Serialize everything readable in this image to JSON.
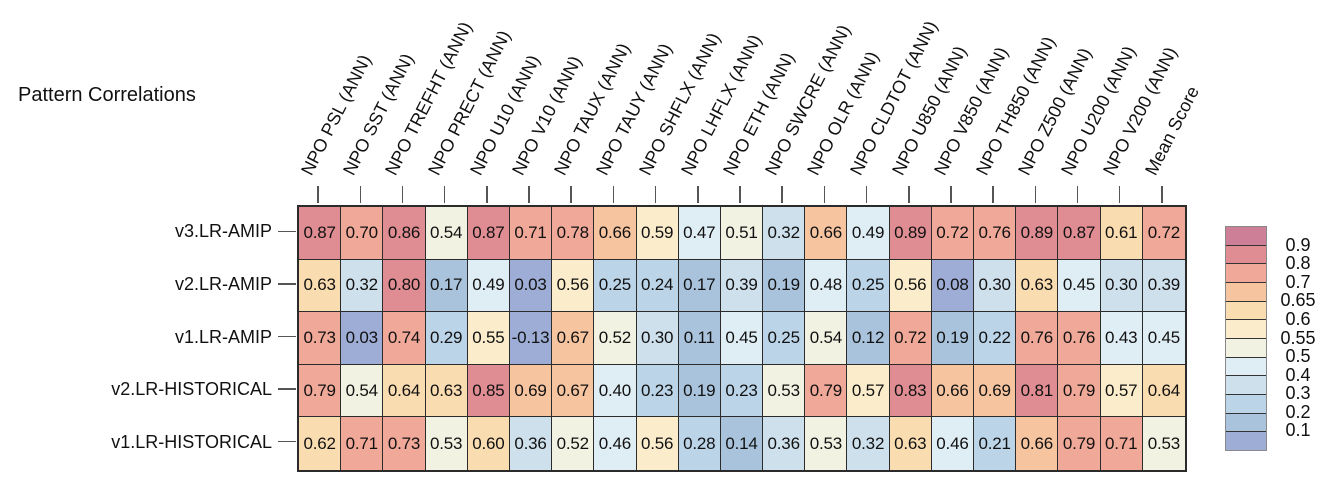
{
  "title": "Pattern Correlations",
  "chart_data": {
    "type": "heatmap",
    "title": "Pattern Correlations",
    "rows": [
      "v3.LR-AMIP",
      "v2.LR-AMIP",
      "v1.LR-AMIP",
      "v2.LR-HISTORICAL",
      "v1.LR-HISTORICAL"
    ],
    "columns": [
      "NPO PSL (ANN)",
      "NPO SST (ANN)",
      "NPO TREFHT (ANN)",
      "NPO PRECT (ANN)",
      "NPO U10 (ANN)",
      "NPO V10 (ANN)",
      "NPO TAUX (ANN)",
      "NPO TAUY (ANN)",
      "NPO SHFLX (ANN)",
      "NPO LHFLX (ANN)",
      "NPO ETH (ANN)",
      "NPO SWCRE (ANN)",
      "NPO OLR (ANN)",
      "NPO CLDTOT (ANN)",
      "NPO U850 (ANN)",
      "NPO V850 (ANN)",
      "NPO TH850 (ANN)",
      "NPO Z500 (ANN)",
      "NPO U200 (ANN)",
      "NPO V200 (ANN)",
      "Mean Score"
    ],
    "values": [
      [
        0.87,
        0.7,
        0.86,
        0.54,
        0.87,
        0.71,
        0.78,
        0.66,
        0.59,
        0.47,
        0.51,
        0.32,
        0.66,
        0.49,
        0.89,
        0.72,
        0.76,
        0.89,
        0.87,
        0.61,
        0.72
      ],
      [
        0.63,
        0.32,
        0.8,
        0.17,
        0.49,
        0.03,
        0.56,
        0.25,
        0.24,
        0.17,
        0.39,
        0.19,
        0.48,
        0.25,
        0.56,
        0.08,
        0.3,
        0.63,
        0.45,
        0.3,
        0.39
      ],
      [
        0.73,
        0.03,
        0.74,
        0.29,
        0.55,
        -0.13,
        0.67,
        0.52,
        0.3,
        0.11,
        0.45,
        0.25,
        0.54,
        0.12,
        0.72,
        0.19,
        0.22,
        0.76,
        0.76,
        0.43,
        0.45
      ],
      [
        0.79,
        0.54,
        0.64,
        0.63,
        0.85,
        0.69,
        0.67,
        0.4,
        0.23,
        0.19,
        0.23,
        0.53,
        0.79,
        0.57,
        0.83,
        0.66,
        0.69,
        0.81,
        0.79,
        0.57,
        0.64
      ],
      [
        0.62,
        0.71,
        0.73,
        0.53,
        0.6,
        0.36,
        0.52,
        0.46,
        0.56,
        0.28,
        0.14,
        0.36,
        0.53,
        0.32,
        0.63,
        0.46,
        0.21,
        0.66,
        0.79,
        0.71,
        0.53
      ]
    ],
    "value_decimals": 2,
    "colorbar": {
      "position": "right",
      "thresholds_low_to_high": [
        0.1,
        0.2,
        0.3,
        0.4,
        0.5,
        0.55,
        0.6,
        0.65,
        0.7,
        0.8,
        0.9
      ],
      "tick_labels_top_to_bottom": [
        "0.9",
        "0.8",
        "0.7",
        "0.65",
        "0.6",
        "0.55",
        "0.5",
        "0.4",
        "0.3",
        "0.2",
        "0.1"
      ],
      "palette_low_to_high": [
        "#9dadd5",
        "#a9c3dd",
        "#bcd4e8",
        "#cfe0ed",
        "#dfedf5",
        "#f2f2e3",
        "#fbeccb",
        "#fadcb1",
        "#f7c4a0",
        "#f0a898",
        "#df8d92",
        "#cc7f96"
      ]
    },
    "grid_on": true,
    "cell_text_color": "#111111",
    "grid_line_color": "#2b2b2b"
  }
}
